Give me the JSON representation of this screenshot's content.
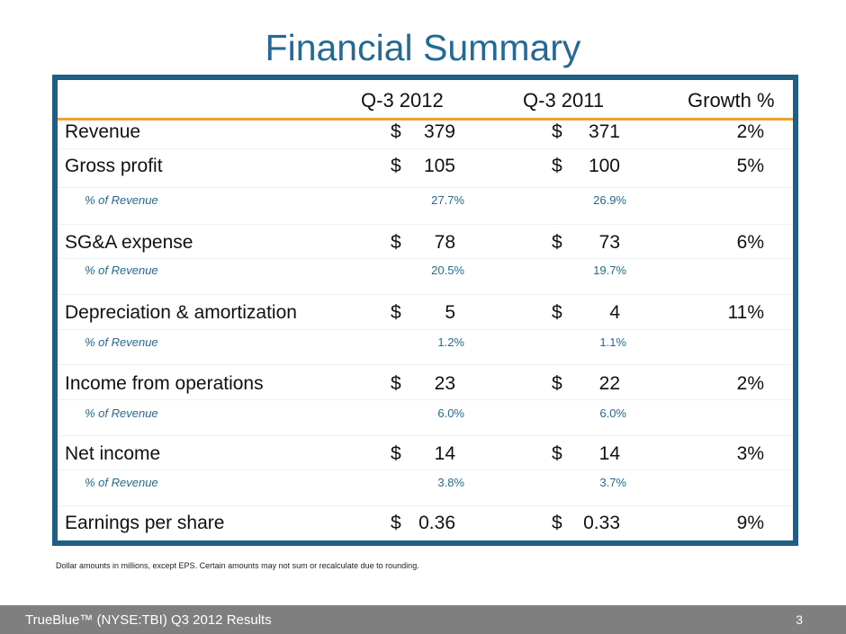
{
  "title": "Financial Summary",
  "table": {
    "headers": [
      "Q-3 2012",
      "Q-3 2011",
      "Growth %"
    ],
    "rows": [
      {
        "type": "main",
        "label": "Revenue",
        "cur": "$",
        "v2012": "379",
        "v2011": "371",
        "growth": "2%"
      },
      {
        "type": "main",
        "label": "Gross profit",
        "cur": "$",
        "v2012": "105",
        "v2011": "100",
        "growth": "5%"
      },
      {
        "type": "sub",
        "label": "% of Revenue",
        "v2012": "27.7%",
        "v2011": "26.9%"
      },
      {
        "type": "main",
        "label": "SG&A expense",
        "cur": "$",
        "v2012": "78",
        "v2011": "73",
        "growth": "6%"
      },
      {
        "type": "sub",
        "label": "% of Revenue",
        "v2012": "20.5%",
        "v2011": "19.7%"
      },
      {
        "type": "main",
        "label": "Depreciation & amortization",
        "cur": "$",
        "v2012": "5",
        "v2011": "4",
        "growth": "11%"
      },
      {
        "type": "sub",
        "label": "% of Revenue",
        "v2012": "1.2%",
        "v2011": "1.1%"
      },
      {
        "type": "main",
        "label": "Income from operations",
        "cur": "$",
        "v2012": "23",
        "v2011": "22",
        "growth": "2%"
      },
      {
        "type": "sub",
        "label": "% of Revenue",
        "v2012": "6.0%",
        "v2011": "6.0%"
      },
      {
        "type": "main",
        "label": "Net income",
        "cur": "$",
        "v2012": "14",
        "v2011": "14",
        "growth": "3%"
      },
      {
        "type": "sub",
        "label": "% of Revenue",
        "v2012": "3.8%",
        "v2011": "3.7%"
      },
      {
        "type": "main",
        "label": "Earnings per share",
        "cur": "$",
        "v2012": "0.36",
        "v2011": "0.33",
        "growth": "9%"
      }
    ]
  },
  "note": "Dollar amounts in millions, except EPS. Certain amounts may not sum or recalculate due to rounding.",
  "footer": {
    "left": "TrueBlue™ (NYSE:TBI) Q3 2012 Results",
    "page": "3"
  }
}
